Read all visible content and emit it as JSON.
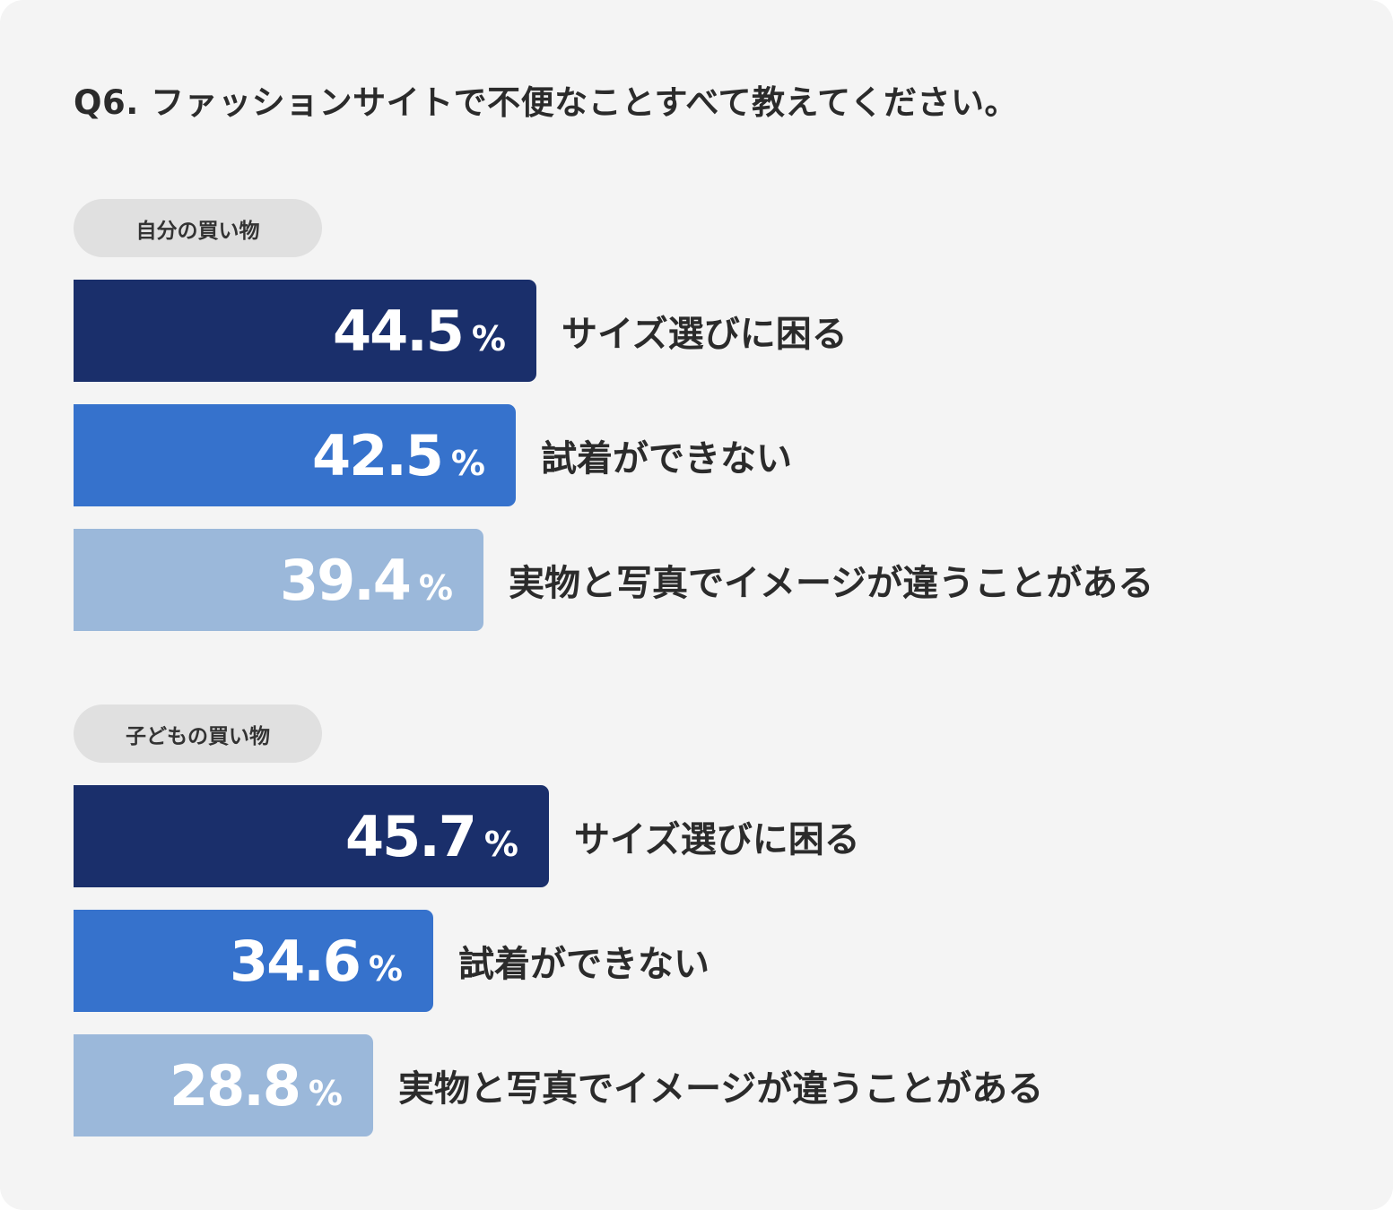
{
  "title": "Q6. ファッションサイトで不便なことすべて教えてください。",
  "colors": {
    "background": "#f4f4f4",
    "pill": "#e0e0e0",
    "bar_dark": "#1a2f6b",
    "bar_mid": "#3672cc",
    "bar_light": "#9bb8da"
  },
  "chart_data": {
    "type": "bar",
    "orientation": "horizontal",
    "unit": "%",
    "groups": [
      {
        "name": "自分の買い物",
        "items": [
          {
            "label": "サイズ選びに困る",
            "value": "44.5",
            "unit": "%",
            "color": "#1a2f6b"
          },
          {
            "label": "試着ができない",
            "value": "42.5",
            "unit": "%",
            "color": "#3672cc"
          },
          {
            "label": "実物と写真でイメージが違うことがある",
            "value": "39.4",
            "unit": "%",
            "color": "#9bb8da"
          }
        ]
      },
      {
        "name": "子どもの買い物",
        "items": [
          {
            "label": "サイズ選びに困る",
            "value": "45.7",
            "unit": "%",
            "color": "#1a2f6b"
          },
          {
            "label": "試着ができない",
            "value": "34.6",
            "unit": "%",
            "color": "#3672cc"
          },
          {
            "label": "実物と写真でイメージが違うことがある",
            "value": "28.8",
            "unit": "%",
            "color": "#9bb8da"
          }
        ]
      }
    ]
  }
}
